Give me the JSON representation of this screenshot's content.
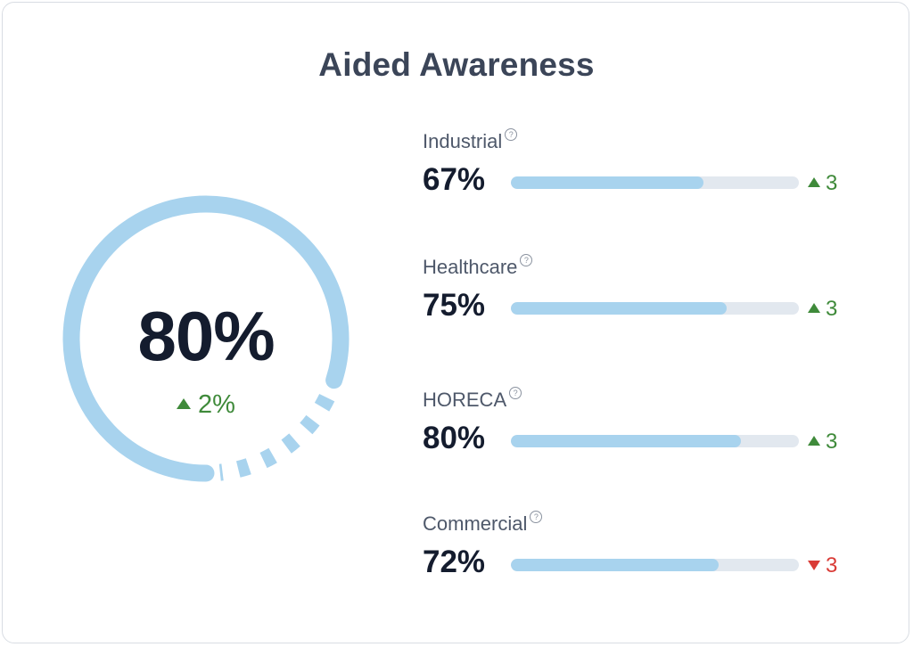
{
  "title": "Aided Awareness",
  "overall": {
    "value": "80%",
    "fraction": 0.8,
    "delta": "2%",
    "delta_direction": "up"
  },
  "segments": [
    {
      "label": "Industrial",
      "value": "67%",
      "fraction": 0.67,
      "delta": "3",
      "delta_direction": "up"
    },
    {
      "label": "Healthcare",
      "value": "75%",
      "fraction": 0.75,
      "delta": "3",
      "delta_direction": "up"
    },
    {
      "label": "HORECA",
      "value": "80%",
      "fraction": 0.8,
      "delta": "3",
      "delta_direction": "up"
    },
    {
      "label": "Commercial",
      "value": "72%",
      "fraction": 0.72,
      "delta": "3",
      "delta_direction": "down"
    }
  ],
  "help_icon_glyph": "?",
  "icons": {
    "help": "help-circle-icon",
    "up": "triangle-up-icon",
    "down": "triangle-down-icon"
  },
  "colors": {
    "accent": "#a8d3ee",
    "track": "#e2e8ef",
    "positive": "#3f8a3a",
    "negative": "#d93b36",
    "title": "#3b4558",
    "value": "#141c2e"
  }
}
